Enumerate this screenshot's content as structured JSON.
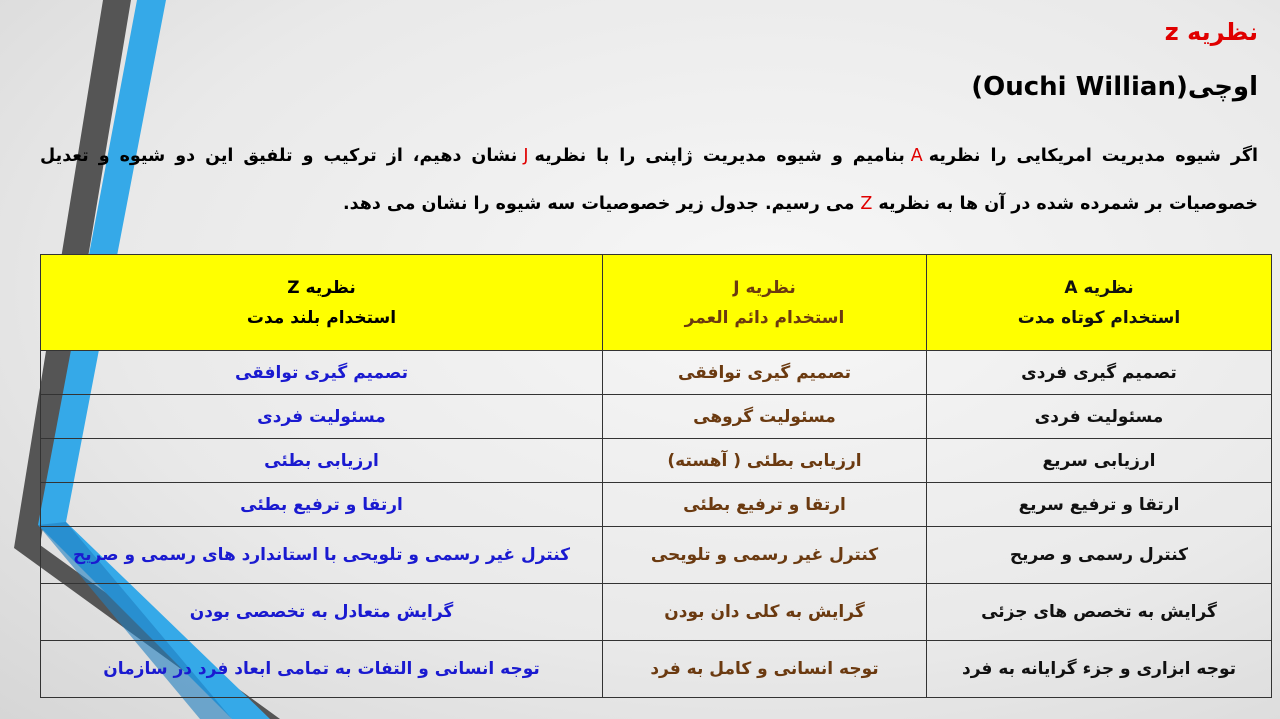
{
  "title": "نظریه z",
  "subtitle": "اوچی(Ouchi Willian)",
  "paragraph": {
    "p1": "اگر شیوه مدیریت امریکایی را نظریه",
    "a": "A",
    "p2": "بنامیم و شیوه مدیریت ژاپنی را با نظریه",
    "j": "J",
    "p3": "نشان دهیم، از ترکیب و تلفیق این دو شیوه و تعدیل خصوصیات بر شمرده شده در آن ها به نظریه",
    "z": "Z",
    "p4": "می رسیم. جدول زیر خصوصیات سه شیوه را نشان می دهد."
  },
  "colors": {
    "title": "#e00000",
    "header_bg": "#ffff00",
    "col_a": "#111111",
    "col_j": "#6b3a10",
    "col_z": "#1a1ad0"
  },
  "table": {
    "headers": [
      {
        "name": "نظریه A",
        "sub": "استخدام کوتاه مدت"
      },
      {
        "name": "نظریه J",
        "sub": "استخدام دائم العمر"
      },
      {
        "name": "نظریه Z",
        "sub": "استخدام بلند مدت"
      }
    ],
    "rows": [
      [
        "تصمیم گیری فردی",
        "تصمیم گیری توافقی",
        "تصمیم گیری توافقی"
      ],
      [
        "مسئولیت فردی",
        "مسئولیت گروهی",
        "مسئولیت فردی"
      ],
      [
        "ارزیابی سریع",
        "ارزیابی بطئی ( آهسته)",
        "ارزیابی بطئی"
      ],
      [
        "ارتقا و ترفیع سریع",
        "ارتقا و ترفیع بطئی",
        "ارتقا و ترفیع بطئی"
      ],
      [
        "کنترل رسمی و صریح",
        "کنترل غیر رسمی و تلویحی",
        "کنترل غیر رسمی و تلویحی با استاندارد های رسمی و صریح"
      ],
      [
        "گرایش به تخصص های جزئی",
        "گرایش به کلی دان بودن",
        "گرایش متعادل به تخصصی بودن"
      ],
      [
        "توجه ابزاری و جزء گرایانه به فرد",
        "توجه انسانی و کامل به فرد",
        "توجه انسانی و التفات به تمامی ابعاد فرد در سازمان"
      ]
    ]
  }
}
